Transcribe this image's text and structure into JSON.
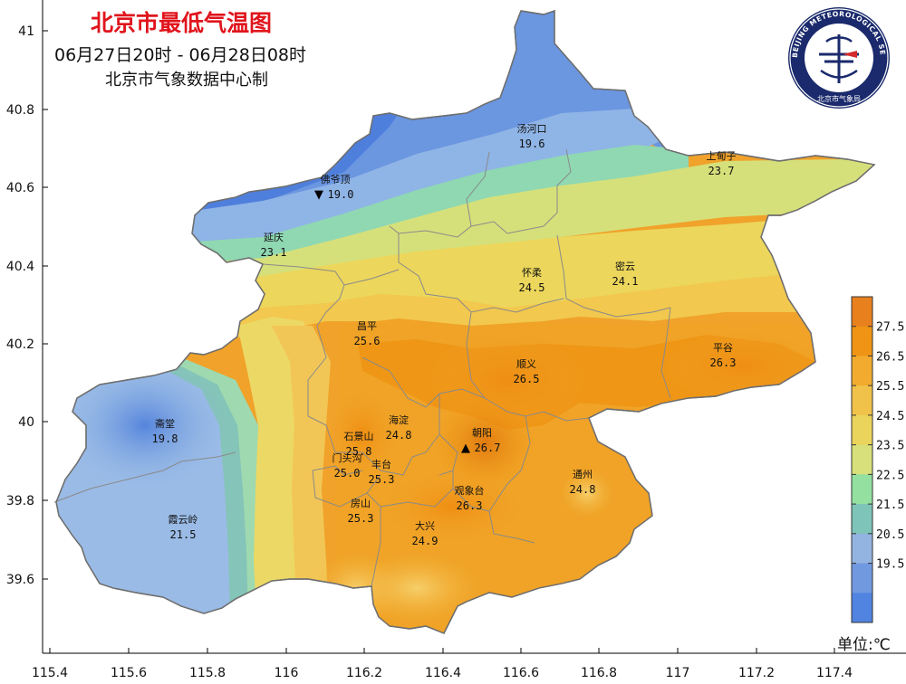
{
  "map": {
    "title": "北京市最低气温图",
    "time_range": "06月27日20时  -  06月28日08时",
    "source": "北京市气象数据中心制",
    "unit_label": "单位:℃",
    "logo": {
      "outer_text": "BEIJING METEOROLOGICAL SERVICE",
      "inner_text": "北京市气象局"
    },
    "axes": {
      "lon_ticks": [
        "115.4",
        "115.6",
        "115.8",
        "116",
        "116.2",
        "116.4",
        "116.6",
        "116.8",
        "117",
        "117.2",
        "117.4"
      ],
      "lat_ticks": [
        "41",
        "40.8",
        "40.6",
        "40.4",
        "40.2",
        "40",
        "39.8",
        "39.6"
      ]
    },
    "legend": {
      "labels": [
        "27.5",
        "26.5",
        "25.5",
        "24.5",
        "23.5",
        "22.5",
        "21.5",
        "20.5",
        "19.5"
      ],
      "colors": [
        "#e8801e",
        "#ef9414",
        "#f2ab2e",
        "#f0c24a",
        "#ebd45c",
        "#d7e07a",
        "#93e0a0",
        "#7ec4b8",
        "#93b3e0",
        "#7199e0",
        "#5183e0"
      ]
    },
    "stations": [
      {
        "name": "汤河口",
        "temp": "19.6",
        "marker": ""
      },
      {
        "name": "上甸子",
        "temp": "23.7",
        "marker": ""
      },
      {
        "name": "佛爷顶",
        "temp": "19.0",
        "marker": "▼"
      },
      {
        "name": "延庆",
        "temp": "23.1",
        "marker": ""
      },
      {
        "name": "怀柔",
        "temp": "24.5",
        "marker": ""
      },
      {
        "name": "密云",
        "temp": "24.1",
        "marker": ""
      },
      {
        "name": "昌平",
        "temp": "25.6",
        "marker": ""
      },
      {
        "name": "平谷",
        "temp": "26.3",
        "marker": ""
      },
      {
        "name": "顺义",
        "temp": "26.5",
        "marker": ""
      },
      {
        "name": "斋堂",
        "temp": "19.8",
        "marker": ""
      },
      {
        "name": "海淀",
        "temp": "24.8",
        "marker": ""
      },
      {
        "name": "石景山",
        "temp": "25.8",
        "marker": ""
      },
      {
        "name": "朝阳",
        "temp": "26.7",
        "marker": "▲"
      },
      {
        "name": "门头沟",
        "temp": "25.0",
        "marker": ""
      },
      {
        "name": "丰台",
        "temp": "25.3",
        "marker": ""
      },
      {
        "name": "通州",
        "temp": "24.8",
        "marker": ""
      },
      {
        "name": "观象台",
        "temp": "26.3",
        "marker": ""
      },
      {
        "name": "霞云岭",
        "temp": "21.5",
        "marker": ""
      },
      {
        "name": "房山",
        "temp": "25.3",
        "marker": ""
      },
      {
        "name": "大兴",
        "temp": "24.9",
        "marker": ""
      }
    ]
  }
}
